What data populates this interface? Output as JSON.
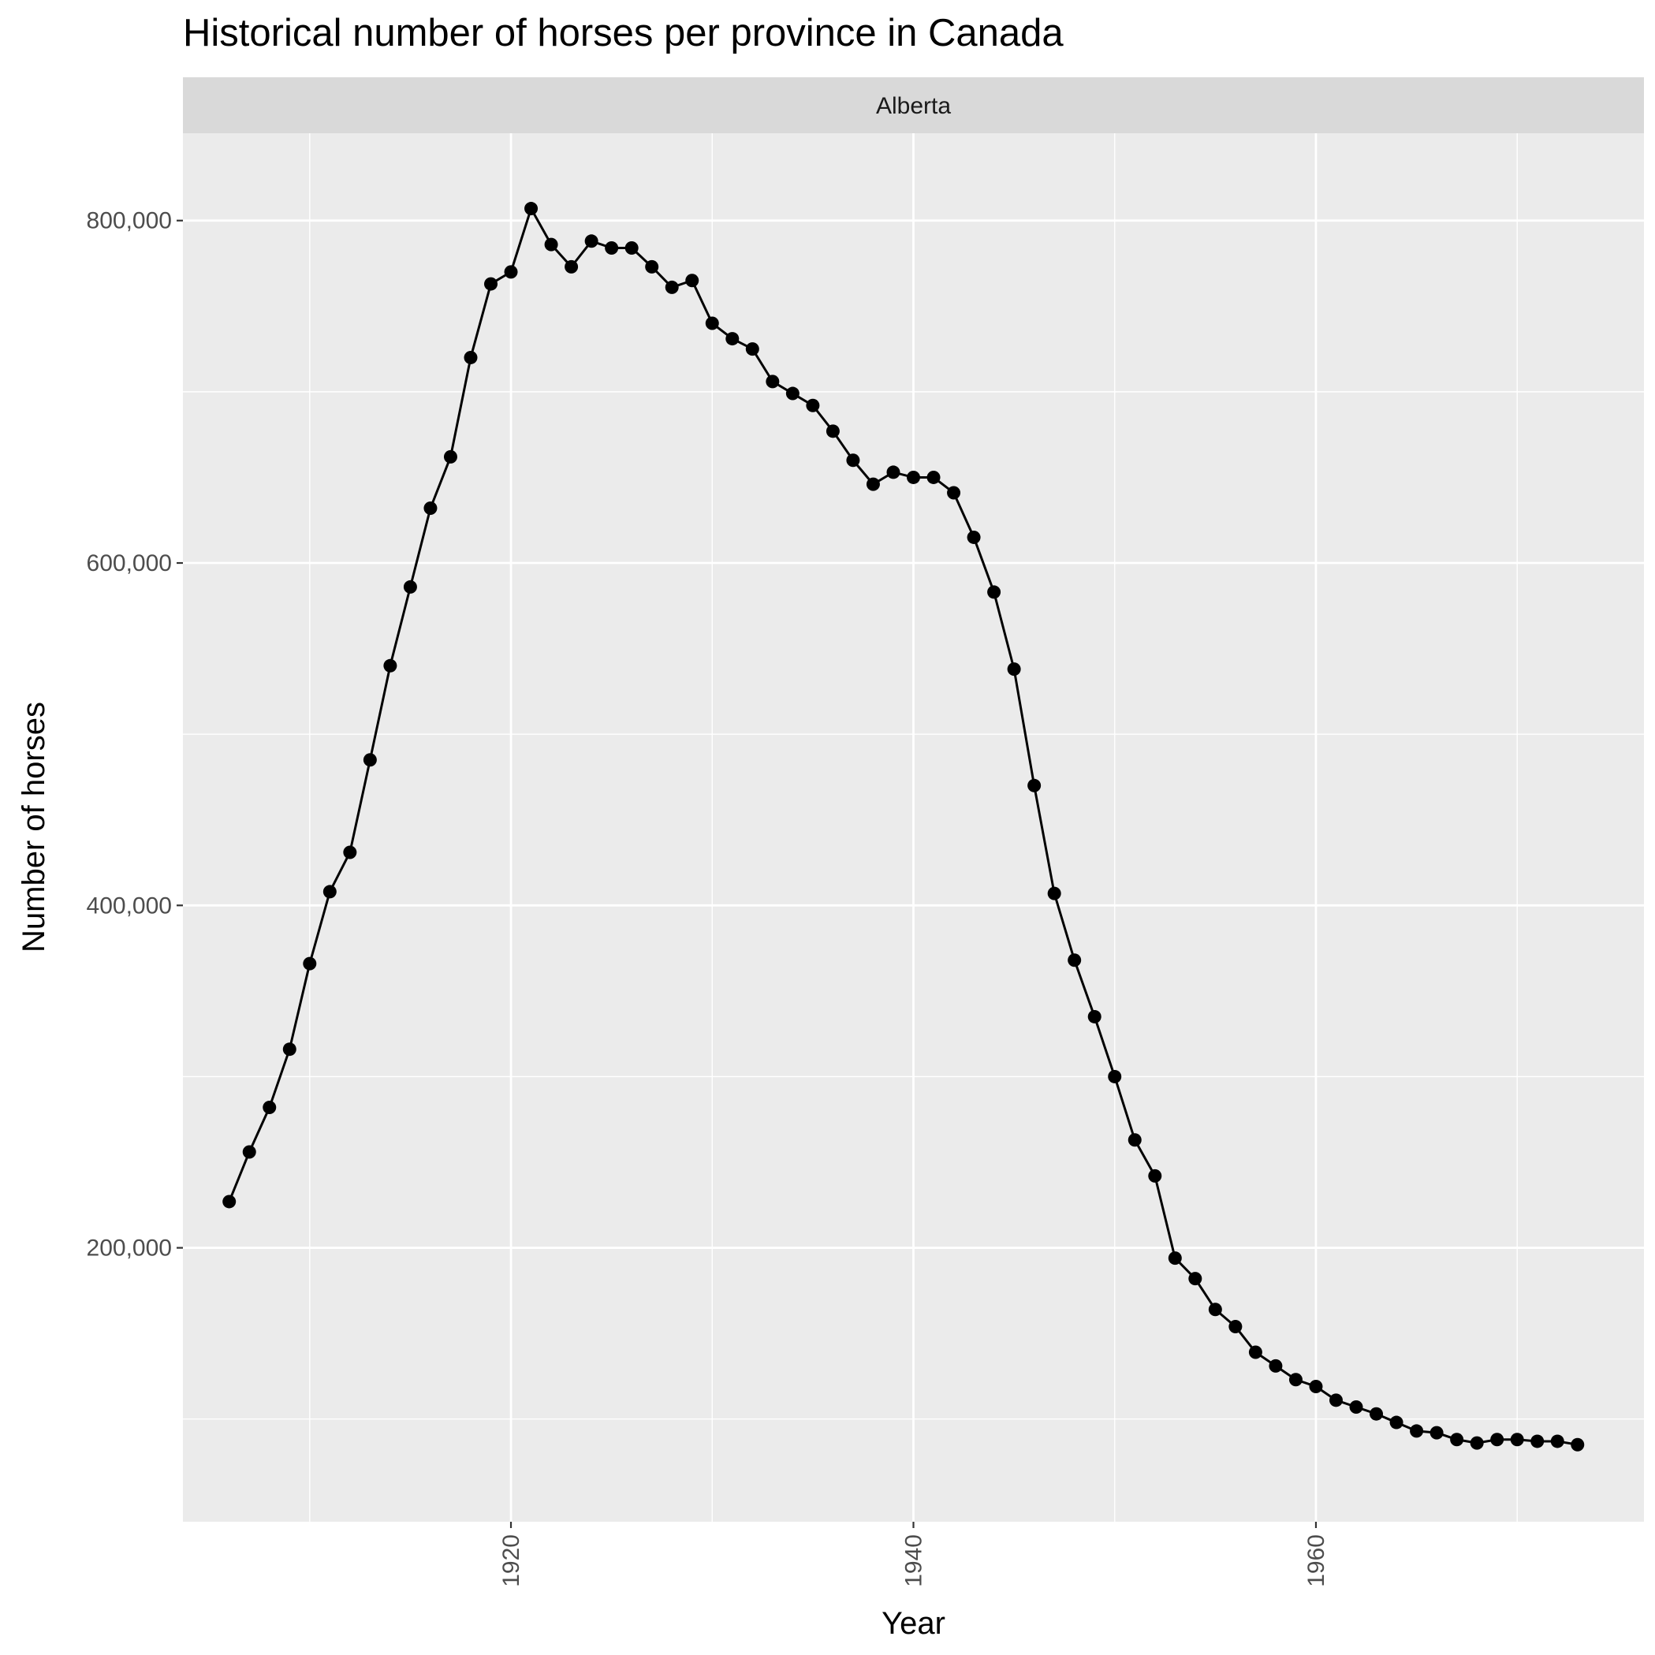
{
  "chart_data": {
    "type": "line",
    "title": "Historical number of horses per province in Canada",
    "facet_label": "Alberta",
    "xlabel": "Year",
    "ylabel": "Number of horses",
    "xlim": [
      1903.7,
      1976.3
    ],
    "ylim": [
      40000,
      851000
    ],
    "x_ticks": [
      1920,
      1940,
      1960
    ],
    "x_tick_labels": [
      "1920",
      "1940",
      "1960"
    ],
    "y_ticks": [
      200000,
      400000,
      600000,
      800000
    ],
    "y_tick_labels": [
      "200,000",
      "400,000",
      "600,000",
      "800,000"
    ],
    "grid": true,
    "legend": "none",
    "colors": {
      "panel": "#EBEBEB",
      "strip": "#D9D9D9",
      "grid": "#FFFFFF",
      "line": "#000000"
    },
    "series": [
      {
        "x": [
          1906,
          1907,
          1908,
          1909,
          1910,
          1911,
          1912,
          1913,
          1914,
          1915,
          1916,
          1917,
          1918,
          1919,
          1920,
          1921,
          1922,
          1923,
          1924,
          1925,
          1926,
          1927,
          1928,
          1929,
          1930,
          1931,
          1932,
          1933,
          1934,
          1935,
          1936,
          1937,
          1938,
          1939,
          1940,
          1941,
          1942,
          1943,
          1944,
          1945,
          1946,
          1947,
          1948,
          1949,
          1950,
          1951,
          1952,
          1953,
          1954,
          1955,
          1956,
          1957,
          1958,
          1959,
          1960,
          1961,
          1962,
          1963,
          1964,
          1965,
          1966,
          1967,
          1968,
          1969,
          1970,
          1971,
          1972,
          1973
        ],
        "values": [
          227000,
          256000,
          282000,
          316000,
          366000,
          408000,
          431000,
          485000,
          540000,
          586000,
          632000,
          662000,
          720000,
          763000,
          770000,
          807000,
          786000,
          773000,
          788000,
          784000,
          784000,
          773000,
          761000,
          765000,
          740000,
          731000,
          725000,
          706000,
          699000,
          692000,
          677000,
          660000,
          646000,
          653000,
          650000,
          650000,
          641000,
          615000,
          583000,
          538000,
          470000,
          407000,
          368000,
          335000,
          300000,
          263000,
          242000,
          194000,
          182000,
          164000,
          154000,
          139000,
          131000,
          123000,
          119000,
          111000,
          107000,
          103000,
          98000,
          93000,
          92000,
          88000,
          86000,
          88000,
          88000,
          87000,
          87000,
          85000
        ]
      }
    ]
  }
}
